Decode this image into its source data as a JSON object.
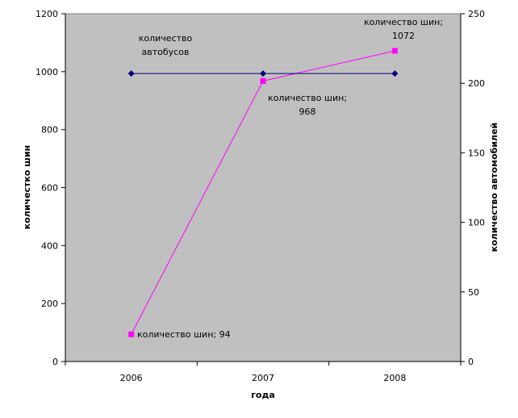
{
  "chart_data": {
    "type": "line",
    "categories": [
      "2006",
      "2007",
      "2008"
    ],
    "xlabel": "года",
    "ylabel_left": "количестко шин",
    "ylabel_right": "количество автомобилей",
    "ylim_left": [
      0,
      1200
    ],
    "ylim_right": [
      0,
      250
    ],
    "yticks_left": [
      "0",
      "200",
      "400",
      "600",
      "800",
      "1000",
      "1200"
    ],
    "yticks_right": [
      "0",
      "50",
      "100",
      "150",
      "200",
      "250"
    ],
    "grid": false,
    "legend": "none",
    "plot_background": "#c0c0c0",
    "series": [
      {
        "values": [
          94,
          968,
          1072
        ],
        "axis": "left",
        "color": "#ff00ff",
        "marker": "square"
      },
      {
        "values": [
          207,
          207,
          207
        ],
        "axis": "right",
        "color": "#000080",
        "marker": "diamond"
      }
    ],
    "annotations": [
      "количество шин; 94",
      "количество шин;",
      "968",
      "количество шин;",
      "1072",
      "количество",
      "автобусов"
    ]
  }
}
